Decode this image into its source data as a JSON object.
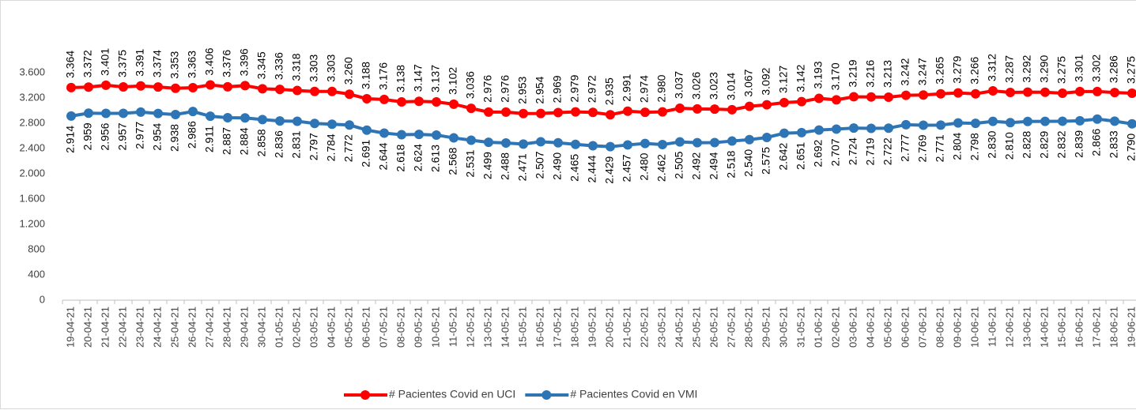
{
  "chart_data": {
    "type": "line",
    "categories": [
      "19-04-21",
      "20-04-21",
      "21-04-21",
      "22-04-21",
      "23-04-21",
      "24-04-21",
      "25-04-21",
      "26-04-21",
      "27-04-21",
      "28-04-21",
      "29-04-21",
      "30-04-21",
      "01-05-21",
      "02-05-21",
      "03-05-21",
      "04-05-21",
      "05-05-21",
      "06-05-21",
      "07-05-21",
      "08-05-21",
      "09-05-21",
      "10-05-21",
      "11-05-21",
      "12-05-21",
      "13-05-21",
      "14-05-21",
      "15-05-21",
      "16-05-21",
      "17-05-21",
      "18-05-21",
      "19-05-21",
      "20-05-21",
      "21-05-21",
      "22-05-21",
      "23-05-21",
      "24-05-21",
      "25-05-21",
      "26-05-21",
      "27-05-21",
      "28-05-21",
      "29-05-21",
      "30-05-21",
      "31-05-21",
      "01-06-21",
      "02-06-21",
      "03-06-21",
      "04-06-21",
      "05-06-21",
      "06-06-21",
      "07-06-21",
      "08-06-21",
      "09-06-21",
      "10-06-21",
      "11-06-21",
      "12-06-21",
      "13-06-21",
      "14-06-21",
      "15-06-21",
      "16-06-21",
      "17-06-21",
      "18-06-21",
      "19-06-21"
    ],
    "series": [
      {
        "name": "# Pacientes Covid en UCI",
        "color": "#ff0000",
        "label_side": "above",
        "values": [
          3364,
          3372,
          3401,
          3375,
          3391,
          3374,
          3353,
          3363,
          3406,
          3376,
          3396,
          3345,
          3336,
          3318,
          3303,
          3303,
          3260,
          3188,
          3176,
          3138,
          3147,
          3137,
          3102,
          3036,
          2976,
          2976,
          2953,
          2954,
          2969,
          2979,
          2972,
          2935,
          2991,
          2974,
          2980,
          3037,
          3026,
          3023,
          3014,
          3067,
          3092,
          3127,
          3142,
          3193,
          3170,
          3219,
          3216,
          3213,
          3242,
          3247,
          3265,
          3279,
          3266,
          3312,
          3287,
          3292,
          3290,
          3275,
          3301,
          3302,
          3286,
          3275
        ],
        "value_labels": [
          "3.364",
          "3.372",
          "3.401",
          "3.375",
          "3.391",
          "3.374",
          "3.353",
          "3.363",
          "3.406",
          "3.376",
          "3.396",
          "3.345",
          "3.336",
          "3.318",
          "3.303",
          "3.303",
          "3.260",
          "3.188",
          "3.176",
          "3.138",
          "3.147",
          "3.137",
          "3.102",
          "3.036",
          "2.976",
          "2.976",
          "2.953",
          "2.954",
          "2.969",
          "2.979",
          "2.972",
          "2.935",
          "2.991",
          "2.974",
          "2.980",
          "3.037",
          "3.026",
          "3.023",
          "3.014",
          "3.067",
          "3.092",
          "3.127",
          "3.142",
          "3.193",
          "3.170",
          "3.219",
          "3.216",
          "3.213",
          "3.242",
          "3.247",
          "3.265",
          "3.279",
          "3.266",
          "3.312",
          "3.287",
          "3.292",
          "3.290",
          "3.275",
          "3.301",
          "3.302",
          "3.286",
          "3.275"
        ]
      },
      {
        "name": "# Pacientes Covid en VMI",
        "color": "#2e75b6",
        "label_side": "below",
        "values": [
          2914,
          2959,
          2956,
          2957,
          2977,
          2954,
          2938,
          2986,
          2911,
          2887,
          2884,
          2858,
          2836,
          2831,
          2797,
          2784,
          2772,
          2691,
          2644,
          2618,
          2624,
          2613,
          2568,
          2531,
          2499,
          2488,
          2471,
          2507,
          2490,
          2465,
          2444,
          2429,
          2457,
          2480,
          2462,
          2505,
          2492,
          2494,
          2518,
          2540,
          2575,
          2642,
          2651,
          2692,
          2707,
          2724,
          2719,
          2722,
          2777,
          2769,
          2771,
          2804,
          2798,
          2830,
          2810,
          2828,
          2829,
          2832,
          2839,
          2866,
          2833,
          2790
        ],
        "value_labels": [
          "2.914",
          "2.959",
          "2.956",
          "2.957",
          "2.977",
          "2.954",
          "2.938",
          "2.986",
          "2.911",
          "2.887",
          "2.884",
          "2.858",
          "2.836",
          "2.831",
          "2.797",
          "2.784",
          "2.772",
          "2.691",
          "2.644",
          "2.618",
          "2.624",
          "2.613",
          "2.568",
          "2.531",
          "2.499",
          "2.488",
          "2.471",
          "2.507",
          "2.490",
          "2.465",
          "2.444",
          "2.429",
          "2.457",
          "2.480",
          "2.462",
          "2.505",
          "2.492",
          "2.494",
          "2.518",
          "2.540",
          "2.575",
          "2.642",
          "2.651",
          "2.692",
          "2.707",
          "2.724",
          "2.719",
          "2.722",
          "2.777",
          "2.769",
          "2.771",
          "2.804",
          "2.798",
          "2.830",
          "2.810",
          "2.828",
          "2.829",
          "2.832",
          "2.839",
          "2.866",
          "2.833",
          "2.790"
        ]
      }
    ],
    "ylim": [
      0,
      3600
    ],
    "yticks": [
      0,
      400,
      800,
      {
        "value": 1200,
        "label": "1.200"
      },
      {
        "value": 1600,
        "label": "1.600"
      },
      {
        "value": 2000,
        "label": "2.000"
      },
      {
        "value": 2400,
        "label": "2.400"
      },
      {
        "value": 2800,
        "label": "2.800"
      },
      {
        "value": 3200,
        "label": "3.200"
      },
      {
        "value": 3600,
        "label": "3.600"
      }
    ],
    "grid": false,
    "legend": "bottom"
  }
}
